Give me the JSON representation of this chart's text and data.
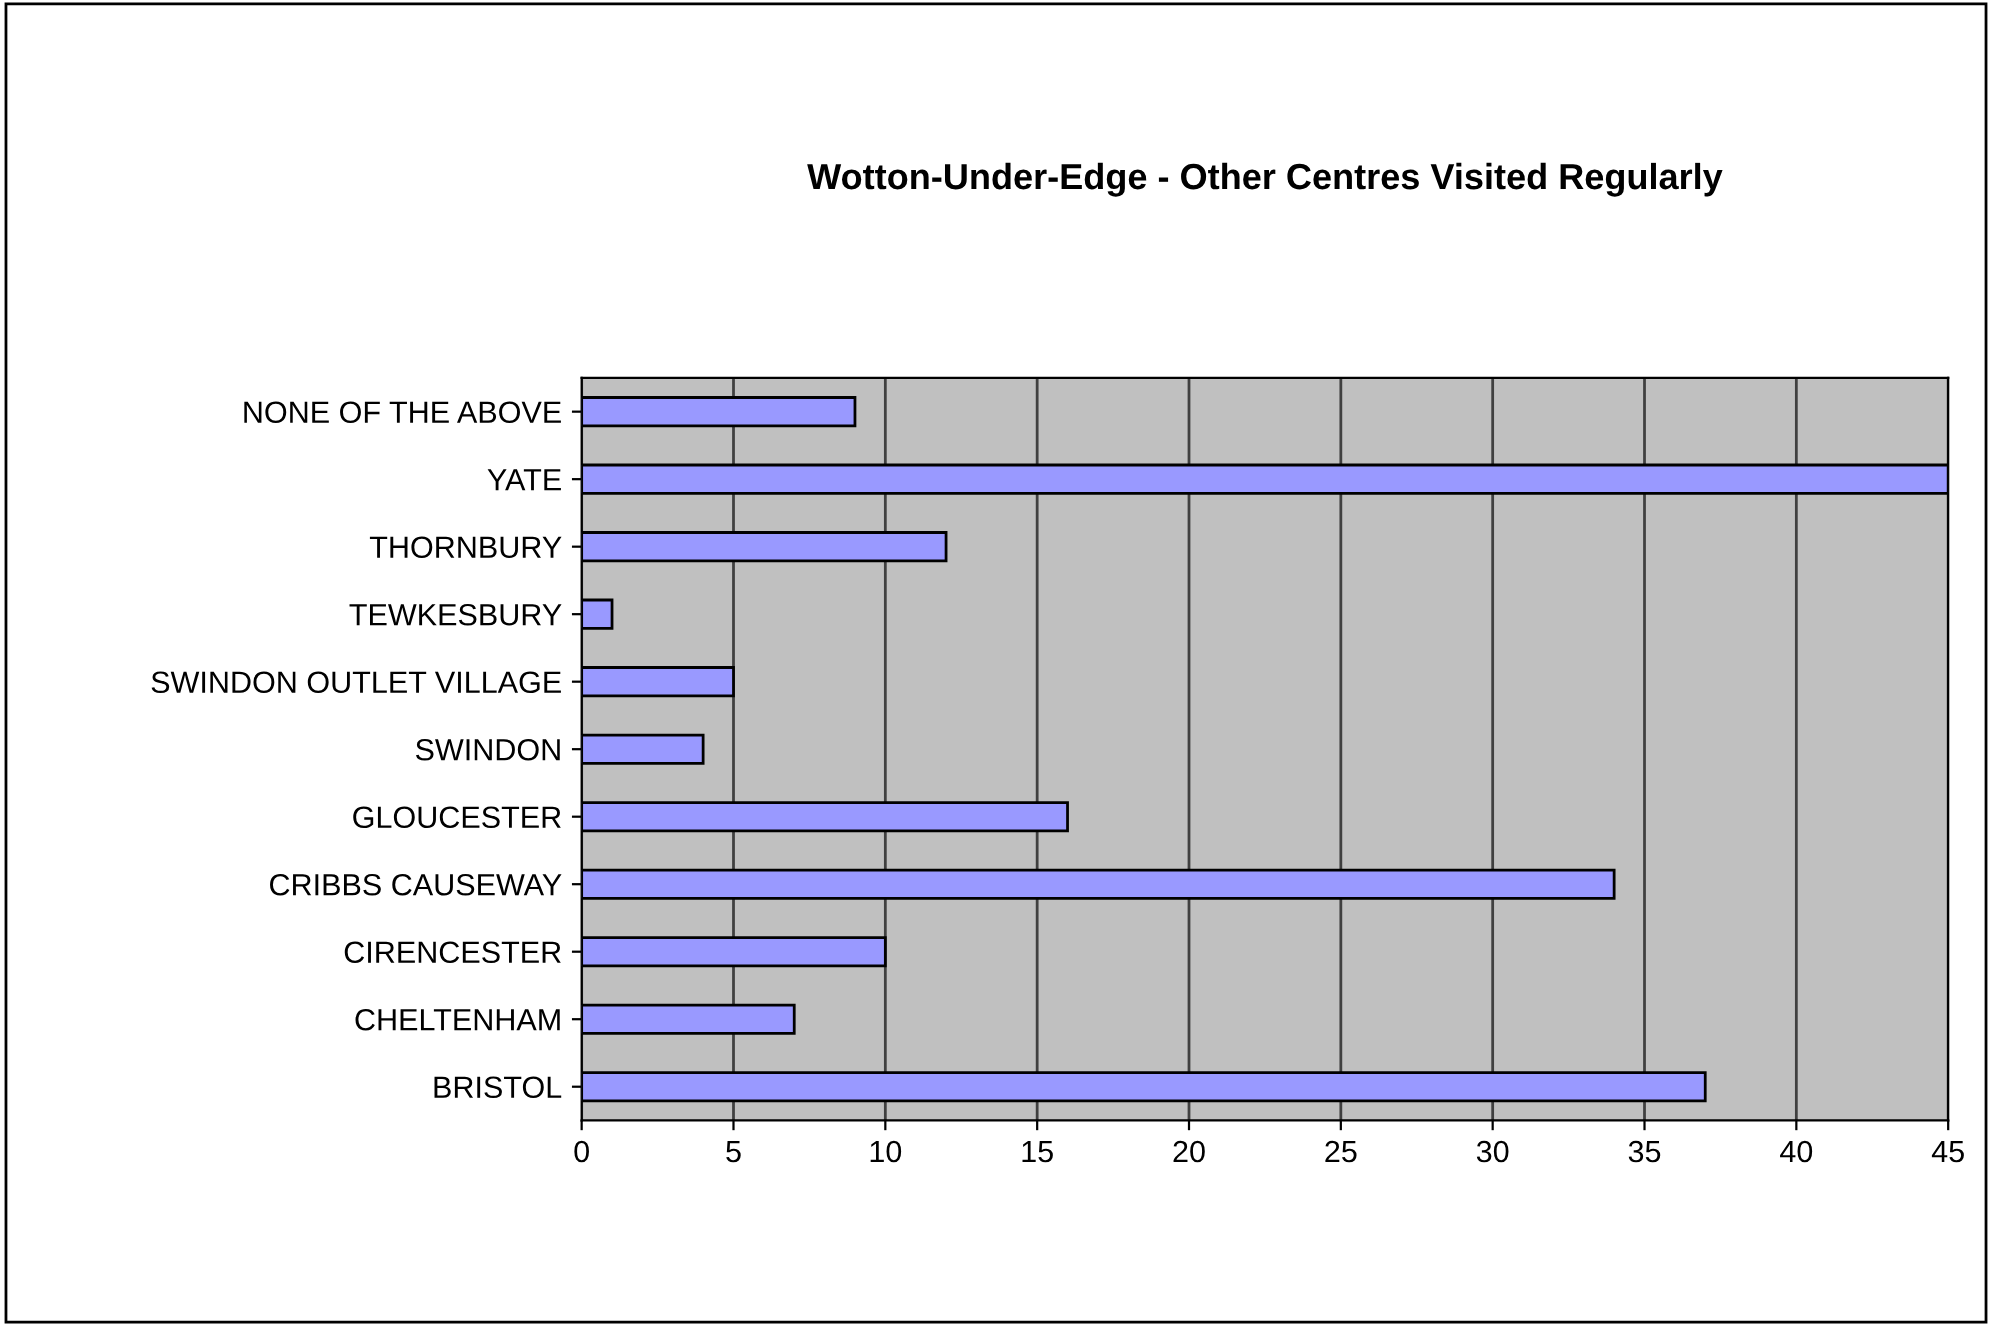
{
  "chart_data": {
    "type": "bar",
    "orientation": "horizontal",
    "title": "Wotton-Under-Edge - Other Centres Visited Regularly",
    "categories": [
      "NONE OF THE ABOVE",
      "YATE",
      "THORNBURY",
      "TEWKESBURY",
      "SWINDON OUTLET VILLAGE",
      "SWINDON",
      "GLOUCESTER",
      "CRIBBS CAUSEWAY",
      "CIRENCESTER",
      "CHELTENHAM",
      "BRISTOL"
    ],
    "values": [
      9,
      45,
      12,
      1,
      5,
      4,
      16,
      34,
      10,
      7,
      37
    ],
    "color": "#9999ff",
    "xlim": [
      0,
      45
    ],
    "xticks": [
      0,
      5,
      10,
      15,
      20,
      25,
      30,
      35,
      40,
      45
    ],
    "grid": "x",
    "legend": false
  }
}
